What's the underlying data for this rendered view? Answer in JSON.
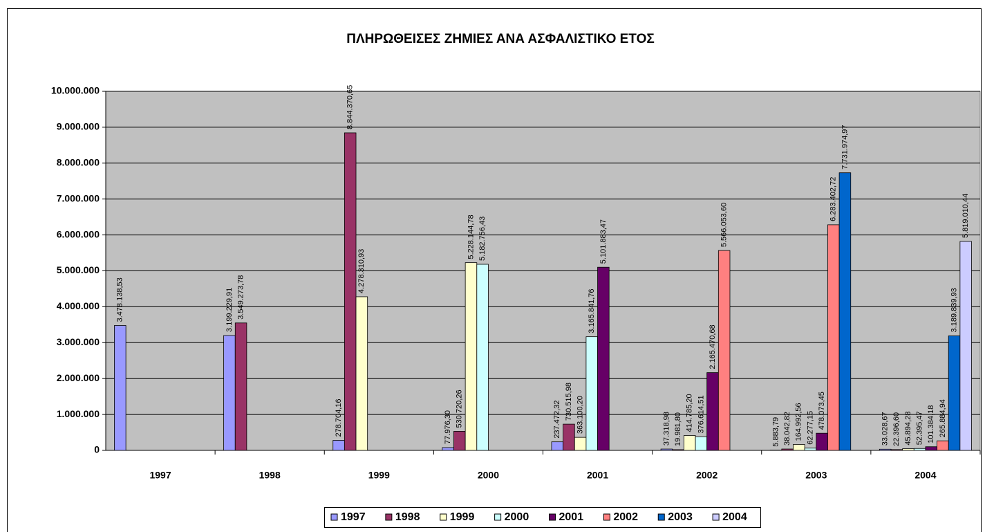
{
  "chart_data": {
    "type": "bar",
    "title": "ΠΛΗΡΩΘΕΙΣΕΣ ΖΗΜΙΕΣ ΑΝΑ ΑΣΦΑΛΙΣΤΙΚΟ ΕΤΟΣ",
    "categories": [
      "1997",
      "1998",
      "1999",
      "2000",
      "2001",
      "2002",
      "2003",
      "2004"
    ],
    "series": [
      {
        "name": "1997",
        "color": "#9999ff",
        "values": [
          3478138.53,
          3199229.91,
          278704.16,
          77976.3,
          237472.32,
          37318.98,
          5883.79,
          33028.67
        ],
        "value_labels": [
          "3.478.138,53",
          "3.199.229,91",
          "278.704,16",
          "77.976,30",
          "237.472,32",
          "37.318,98",
          "5.883,79",
          "33.028,67"
        ]
      },
      {
        "name": "1998",
        "color": "#993366",
        "values": [
          null,
          3549273.78,
          8844370.65,
          530720.26,
          730515.98,
          19981.8,
          38042.82,
          22396.6
        ],
        "value_labels": [
          null,
          "3.549.273,78",
          "8.844.370,65",
          "530.720,26",
          "730.515,98",
          "19.981,80",
          "38.042,82",
          "22.396,60"
        ]
      },
      {
        "name": "1999",
        "color": "#ffffcc",
        "values": [
          null,
          null,
          4278310.93,
          5228144.78,
          363100.2,
          414785.2,
          164992.56,
          45894.28
        ],
        "value_labels": [
          null,
          null,
          "4.278.310,93",
          "5.228.144,78",
          "363.100,20",
          "414.785,20",
          "164.992,56",
          "45.894,28"
        ]
      },
      {
        "name": "2000",
        "color": "#ccffff",
        "values": [
          null,
          null,
          null,
          5182756.43,
          3165841.76,
          376614.51,
          62277.15,
          52395.47
        ],
        "value_labels": [
          null,
          null,
          null,
          "5.182.756,43",
          "3.165.841,76",
          "376.614,51",
          "62.277,15",
          "52.395,47"
        ]
      },
      {
        "name": "2001",
        "color": "#660066",
        "values": [
          null,
          null,
          null,
          null,
          5101883.47,
          2165470.68,
          478073.45,
          101384.18
        ],
        "value_labels": [
          null,
          null,
          null,
          null,
          "5.101.883,47",
          "2.165.470,68",
          "478.073,45",
          "101.384,18"
        ]
      },
      {
        "name": "2002",
        "color": "#ff8080",
        "values": [
          null,
          null,
          null,
          null,
          null,
          5566053.6,
          6283402.72,
          265884.94
        ],
        "value_labels": [
          null,
          null,
          null,
          null,
          null,
          "5.566.053,60",
          "6.283.402,72",
          "265.884,94"
        ]
      },
      {
        "name": "2003",
        "color": "#0066cc",
        "values": [
          null,
          null,
          null,
          null,
          null,
          null,
          7731974.97,
          3189839.93
        ],
        "value_labels": [
          null,
          null,
          null,
          null,
          null,
          null,
          "7.731.974,97",
          "3.189.839,93"
        ]
      },
      {
        "name": "2004",
        "color": "#ccccff",
        "values": [
          null,
          null,
          null,
          null,
          null,
          null,
          null,
          5819010.44
        ],
        "value_labels": [
          null,
          null,
          null,
          null,
          null,
          null,
          null,
          "5.819.010,44"
        ]
      }
    ],
    "ylim": [
      0,
      10000000
    ],
    "yticks": [
      0,
      {
        "value": 1000000,
        "label": "1.000.000"
      },
      {
        "value": 2000000,
        "label": "2.000.000"
      },
      {
        "value": 3000000,
        "label": "3.000.000"
      },
      {
        "value": 4000000,
        "label": "4.000.000"
      },
      {
        "value": 5000000,
        "label": "5.000.000"
      },
      {
        "value": 6000000,
        "label": "6.000.000"
      },
      {
        "value": 7000000,
        "label": "7.000.000"
      },
      {
        "value": 8000000,
        "label": "8.000.000"
      },
      {
        "value": 9000000,
        "label": "9.000.000"
      },
      {
        "value": 10000000,
        "label": "10.000.000"
      }
    ],
    "grid": true,
    "plot_background": "#c0c0c0",
    "legend": "bottom"
  }
}
